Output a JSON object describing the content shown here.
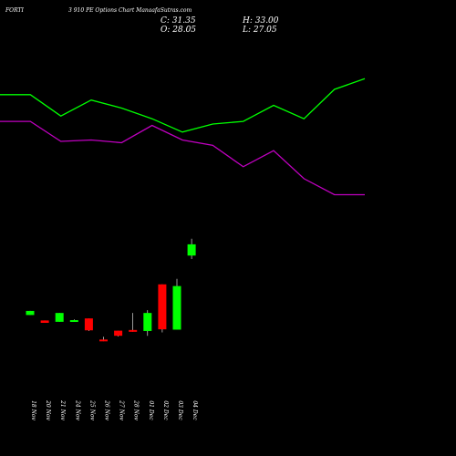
{
  "header": {
    "symbol": "FORTI",
    "subtitle": "3 910  PE Options  Chart ManaafaSutras.com",
    "close_label": "C: 31.35",
    "open_label": "O: 28.05",
    "high_label": "H: 33.00",
    "low_label": "L: 27.05"
  },
  "colors": {
    "background": "#000000",
    "bull": "#00ff00",
    "bear": "#ff0000",
    "line_upper": "#00ff00",
    "line_lower": "#c000c0",
    "text": "#ffffff"
  },
  "chart_data": {
    "type": "candlestick",
    "categories": [
      "18 Nov",
      "20 Nov",
      "21 Nov",
      "24 Nov",
      "25 Nov",
      "26 Nov",
      "27 Nov",
      "28 Nov",
      "01 Dec",
      "02 Dec",
      "03 Dec",
      "04 Dec"
    ],
    "ohlc": [
      {
        "date": "18 Nov",
        "open": 10.6,
        "high": 11.8,
        "low": 10.6,
        "close": 11.8
      },
      {
        "date": "20 Nov",
        "open": 9.0,
        "high": 9.0,
        "low": 8.3,
        "close": 8.3
      },
      {
        "date": "21 Nov",
        "open": 8.6,
        "high": 11.2,
        "low": 8.6,
        "close": 11.2
      },
      {
        "date": "24 Nov",
        "open": 8.9,
        "high": 9.3,
        "low": 8.7,
        "close": 9.1
      },
      {
        "date": "25 Nov",
        "open": 9.6,
        "high": 9.6,
        "low": 5.9,
        "close": 6.1
      },
      {
        "date": "26 Nov",
        "open": 3.4,
        "high": 4.2,
        "low": 2.9,
        "close": 3.0
      },
      {
        "date": "27 Nov",
        "open": 6.0,
        "high": 6.0,
        "low": 4.3,
        "close": 4.5
      },
      {
        "date": "28 Nov",
        "open": 6.2,
        "high": 11.2,
        "low": 5.7,
        "close": 5.9
      },
      {
        "date": "01 Dec",
        "open": 5.9,
        "high": 12.0,
        "low": 4.5,
        "close": 11.2
      },
      {
        "date": "02 Dec",
        "open": 19.6,
        "high": 19.6,
        "low": 5.5,
        "close": 6.4
      },
      {
        "date": "03 Dec",
        "open": 6.3,
        "high": 21.2,
        "low": 6.3,
        "close": 19.1
      },
      {
        "date": "04 Dec",
        "open": 28.05,
        "high": 33.0,
        "low": 27.05,
        "close": 31.35
      }
    ],
    "line_series": [
      {
        "color": "#00ff00",
        "values": [
          100,
          100,
          84,
          96,
          90,
          82,
          72,
          78,
          80,
          92,
          82,
          104,
          112
        ]
      },
      {
        "color": "#c000c0",
        "values": [
          80,
          80,
          65,
          66,
          64,
          77,
          66,
          62,
          46,
          58,
          37,
          25,
          25
        ]
      }
    ]
  }
}
